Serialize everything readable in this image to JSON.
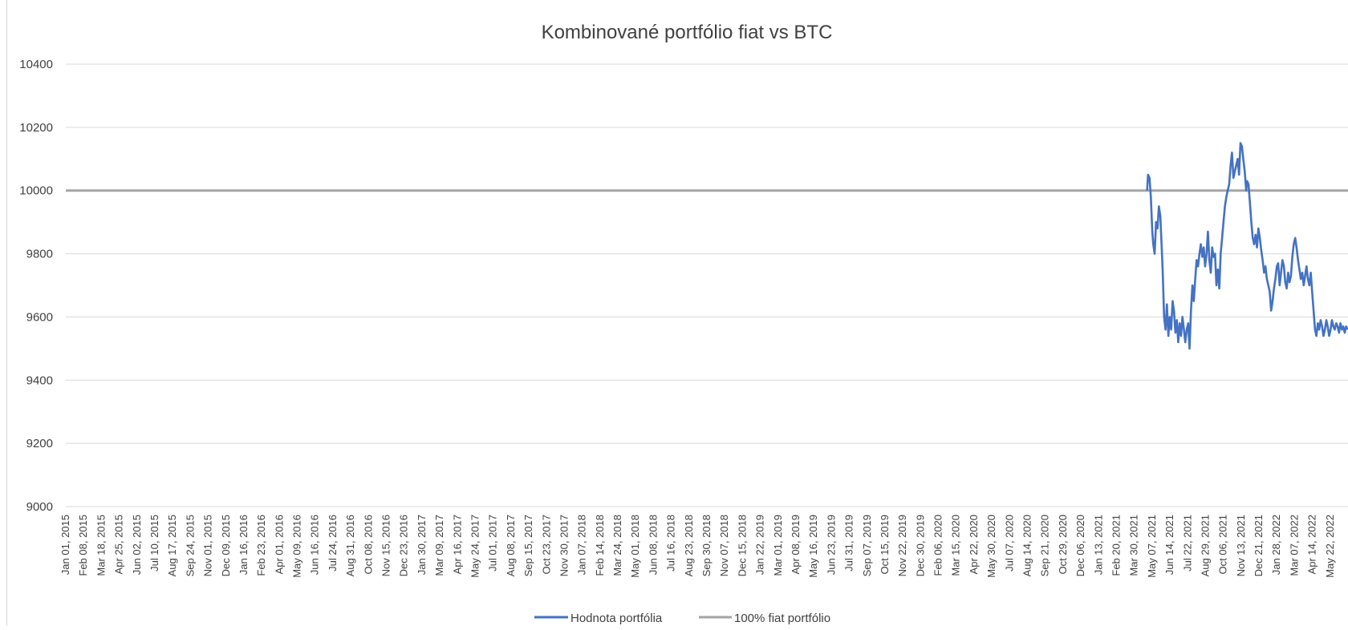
{
  "chart_data": {
    "type": "line",
    "title": "Kombinované portfólio fiat vs BTC",
    "xlabel": "",
    "ylabel": "",
    "ylim": [
      9000,
      10400
    ],
    "yticks": [
      9000,
      9200,
      9400,
      9600,
      9800,
      10000,
      10200,
      10400
    ],
    "grid": "horizontal",
    "legend_position": "bottom",
    "x_range": [
      "2015-01-01",
      "2022-06-12"
    ],
    "x_tick_labels": [
      "Jan 01, 2015",
      "Feb 08, 2015",
      "Mar 18, 2015",
      "Apr 25, 2015",
      "Jun 02, 2015",
      "Jul 10, 2015",
      "Aug 17, 2015",
      "Sep 24, 2015",
      "Nov 01, 2015",
      "Dec 09, 2015",
      "Jan 16, 2016",
      "Feb 23, 2016",
      "Apr 01, 2016",
      "May 09, 2016",
      "Jun 16, 2016",
      "Jul 24, 2016",
      "Aug 31, 2016",
      "Oct 08, 2016",
      "Nov 15, 2016",
      "Dec 23, 2016",
      "Jan 30, 2017",
      "Mar 09, 2017",
      "Apr 16, 2017",
      "May 24, 2017",
      "Jul 01, 2017",
      "Aug 08, 2017",
      "Sep 15, 2017",
      "Oct 23, 2017",
      "Nov 30, 2017",
      "Jan 07, 2018",
      "Feb 14, 2018",
      "Mar 24, 2018",
      "May 01, 2018",
      "Jun 08, 2018",
      "Jul 16, 2018",
      "Aug 23, 2018",
      "Sep 30, 2018",
      "Nov 07, 2018",
      "Dec 15, 2018",
      "Jan 22, 2019",
      "Mar 01, 2019",
      "Apr 08, 2019",
      "May 16, 2019",
      "Jun 23, 2019",
      "Jul 31, 2019",
      "Sep 07, 2019",
      "Oct 15, 2019",
      "Nov 22, 2019",
      "Dec 30, 2019",
      "Feb 06, 2020",
      "Mar 15, 2020",
      "Apr 22, 2020",
      "May 30, 2020",
      "Jul 07, 2020",
      "Aug 14, 2020",
      "Sep 21, 2020",
      "Oct 29, 2020",
      "Dec 06, 2020",
      "Jan 13, 2021",
      "Feb 20, 2021",
      "Mar 30, 2021",
      "May 07, 2021",
      "Jun 14, 2021",
      "Jul 22, 2021",
      "Aug 29, 2021",
      "Oct 06, 2021",
      "Nov 13, 2021",
      "Dec 21, 2021",
      "Jan 28, 2022",
      "Mar 07, 2022",
      "Apr 14, 2022",
      "May 22, 2022"
    ],
    "series": [
      {
        "name": "Hodnota portfólia",
        "color": "#4472c4",
        "x": [
          "2021-04-12",
          "2021-04-14",
          "2021-04-17",
          "2021-04-20",
          "2021-04-23",
          "2021-04-25",
          "2021-04-28",
          "2021-05-01",
          "2021-05-04",
          "2021-05-07",
          "2021-05-10",
          "2021-05-12",
          "2021-05-15",
          "2021-05-18",
          "2021-05-21",
          "2021-05-24",
          "2021-05-27",
          "2021-05-30",
          "2021-06-02",
          "2021-06-05",
          "2021-06-08",
          "2021-06-11",
          "2021-06-14",
          "2021-06-17",
          "2021-06-20",
          "2021-06-23",
          "2021-06-26",
          "2021-06-29",
          "2021-07-02",
          "2021-07-05",
          "2021-07-08",
          "2021-07-11",
          "2021-07-14",
          "2021-07-17",
          "2021-07-20",
          "2021-07-23",
          "2021-07-26",
          "2021-07-29",
          "2021-08-01",
          "2021-08-04",
          "2021-08-07",
          "2021-08-10",
          "2021-08-13",
          "2021-08-16",
          "2021-08-19",
          "2021-08-22",
          "2021-08-25",
          "2021-08-28",
          "2021-08-31",
          "2021-09-03",
          "2021-09-06",
          "2021-09-09",
          "2021-09-12",
          "2021-09-15",
          "2021-09-18",
          "2021-09-21",
          "2021-09-24",
          "2021-09-27",
          "2021-09-30",
          "2021-10-03",
          "2021-10-06",
          "2021-10-09",
          "2021-10-12",
          "2021-10-15",
          "2021-10-18",
          "2021-10-21",
          "2021-10-24",
          "2021-10-27",
          "2021-10-30",
          "2021-11-02",
          "2021-11-05",
          "2021-11-08",
          "2021-11-10",
          "2021-11-13",
          "2021-11-16",
          "2021-11-19",
          "2021-11-22",
          "2021-11-25",
          "2021-11-28",
          "2021-12-01",
          "2021-12-04",
          "2021-12-07",
          "2021-12-10",
          "2021-12-13",
          "2021-12-16",
          "2021-12-19",
          "2021-12-22",
          "2021-12-25",
          "2021-12-28",
          "2021-12-31",
          "2022-01-03",
          "2022-01-06",
          "2022-01-09",
          "2022-01-12",
          "2022-01-15",
          "2022-01-18",
          "2022-01-21",
          "2022-01-24",
          "2022-01-27",
          "2022-01-30",
          "2022-02-02",
          "2022-02-05",
          "2022-02-08",
          "2022-02-11",
          "2022-02-14",
          "2022-02-17",
          "2022-02-20",
          "2022-02-23",
          "2022-02-26",
          "2022-03-01",
          "2022-03-04",
          "2022-03-07",
          "2022-03-10",
          "2022-03-13",
          "2022-03-16",
          "2022-03-19",
          "2022-03-22",
          "2022-03-25",
          "2022-03-28",
          "2022-03-31",
          "2022-04-03",
          "2022-04-06",
          "2022-04-09",
          "2022-04-12",
          "2022-04-15",
          "2022-04-18",
          "2022-04-21",
          "2022-04-24",
          "2022-04-27",
          "2022-04-30",
          "2022-05-03",
          "2022-05-06",
          "2022-05-09",
          "2022-05-12",
          "2022-05-15",
          "2022-05-18",
          "2022-05-21",
          "2022-05-24",
          "2022-05-27",
          "2022-05-30",
          "2022-06-02",
          "2022-06-05",
          "2022-06-08",
          "2022-06-12"
        ],
        "values": [
          10000,
          10050,
          10040,
          9980,
          9870,
          9830,
          9800,
          9900,
          9880,
          9950,
          9920,
          9850,
          9750,
          9600,
          9560,
          9640,
          9540,
          9600,
          9560,
          9650,
          9620,
          9550,
          9590,
          9520,
          9580,
          9540,
          9600,
          9560,
          9520,
          9560,
          9580,
          9500,
          9620,
          9700,
          9650,
          9720,
          9780,
          9760,
          9800,
          9830,
          9790,
          9820,
          9760,
          9800,
          9870,
          9780,
          9740,
          9820,
          9790,
          9800,
          9700,
          9750,
          9690,
          9800,
          9850,
          9900,
          9950,
          9980,
          10000,
          10020,
          10080,
          10120,
          10040,
          10060,
          10080,
          10100,
          10050,
          10150,
          10140,
          10100,
          10060,
          10000,
          10030,
          10020,
          9960,
          9900,
          9850,
          9830,
          9860,
          9820,
          9880,
          9850,
          9810,
          9780,
          9740,
          9760,
          9720,
          9700,
          9680,
          9620,
          9650,
          9690,
          9720,
          9760,
          9770,
          9700,
          9740,
          9780,
          9760,
          9710,
          9690,
          9740,
          9710,
          9730,
          9790,
          9830,
          9850,
          9820,
          9780,
          9750,
          9720,
          9740,
          9700,
          9730,
          9760,
          9720,
          9700,
          9740,
          9680,
          9620,
          9560,
          9540,
          9580,
          9560,
          9590,
          9570,
          9540,
          9560,
          9590,
          9570,
          9540,
          9560,
          9590,
          9570,
          9560,
          9580,
          9570,
          9550,
          9580,
          9560,
          9570,
          9550,
          9570,
          9560
        ]
      },
      {
        "name": "100% fiat portfólio",
        "color": "#a5a5a5",
        "x": [
          "2015-01-01",
          "2022-06-12"
        ],
        "values": [
          10000,
          10000
        ]
      }
    ]
  }
}
